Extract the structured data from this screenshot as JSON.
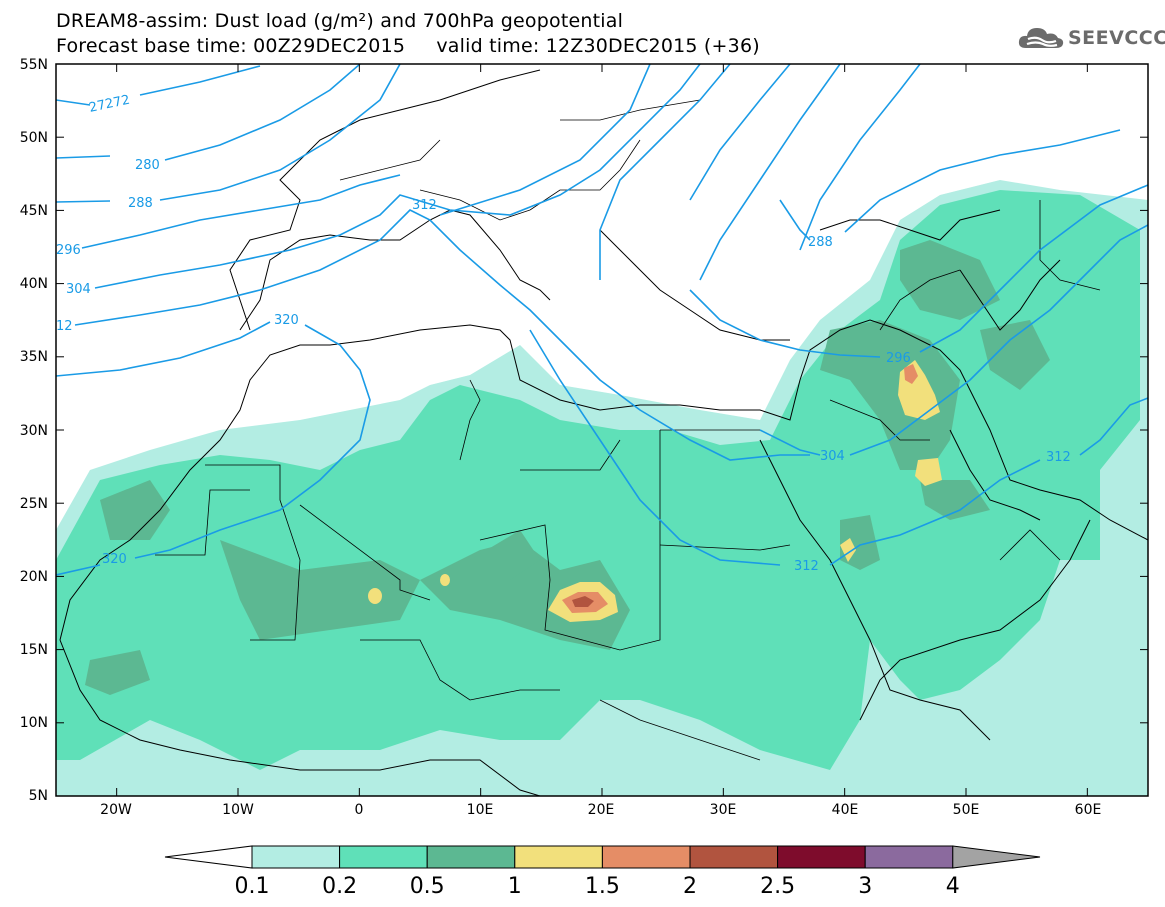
{
  "header": {
    "title_line1": "DREAM8-assim: Dust load (g/m²) and 700hPa geopotential",
    "title_line2": "Forecast base time: 00Z29DEC2015     valid time: 12Z30DEC2015 (+36)",
    "logo_text": "SEEVCCC"
  },
  "map": {
    "lat_labels": [
      "55N",
      "50N",
      "45N",
      "40N",
      "35N",
      "30N",
      "25N",
      "20N",
      "15N",
      "10N",
      "5N"
    ],
    "lon_labels": [
      "20W",
      "10W",
      "0",
      "10E",
      "20E",
      "30E",
      "40E",
      "50E",
      "60E"
    ],
    "lon_range": [
      -25,
      65
    ],
    "lat_range": [
      5,
      55
    ],
    "contour_color": "#1a9be6",
    "contour_labels": [
      "27272",
      "280",
      "288",
      "296",
      "304",
      "12",
      "312",
      "320",
      "288",
      "296",
      "304",
      "312",
      "312",
      "320"
    ]
  },
  "colorbar": {
    "ticks": [
      "0.1",
      "0.2",
      "0.5",
      "1",
      "1.5",
      "2",
      "2.5",
      "3",
      "4"
    ],
    "colors": [
      "#ffffff",
      "#b3ede3",
      "#5fe0b8",
      "#5cb892",
      "#f2e07c",
      "#e58d66",
      "#b1543f",
      "#7e0c2c",
      "#8b6a9e",
      "#a3a3a3"
    ]
  }
}
